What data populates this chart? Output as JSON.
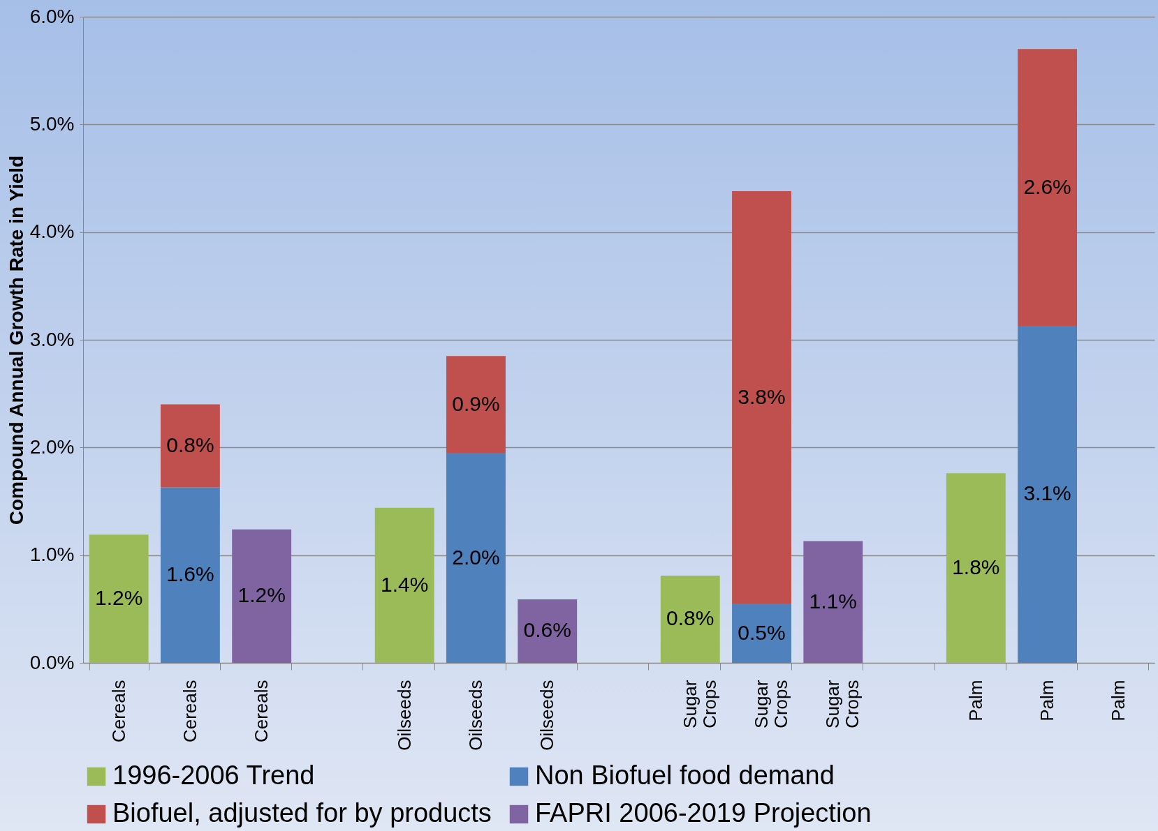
{
  "chart_data": {
    "type": "bar",
    "stacked": true,
    "ylabel": "Compound Annual Growth Rate in Yield",
    "categories": [
      "Cereals",
      "Cereals",
      "Cereals",
      null,
      "Oilseeds",
      "Oilseeds",
      "Oilseeds",
      null,
      "Sugar Crops",
      "Sugar Crops",
      "Sugar Crops",
      null,
      "Palm",
      "Palm",
      "Palm"
    ],
    "series": [
      {
        "name": "1996-2006 Trend",
        "color": "#9bbb59",
        "values": [
          1.19,
          null,
          null,
          null,
          1.44,
          null,
          null,
          null,
          0.81,
          null,
          null,
          null,
          1.76,
          null,
          null
        ],
        "value_labels": [
          "1.2%",
          null,
          null,
          null,
          "1.4%",
          null,
          null,
          null,
          "0.8%",
          null,
          null,
          null,
          "1.8%",
          null,
          null
        ]
      },
      {
        "name": "Non Biofuel food demand",
        "color": "#4f81bd",
        "values": [
          null,
          1.63,
          null,
          null,
          null,
          1.95,
          null,
          null,
          null,
          0.55,
          null,
          null,
          null,
          3.13,
          null
        ],
        "value_labels": [
          null,
          "1.6%",
          null,
          null,
          null,
          "2.0%",
          null,
          null,
          null,
          "0.5%",
          null,
          null,
          null,
          "3.1%",
          null
        ]
      },
      {
        "name": "Biofuel, adjusted for by products",
        "color": "#c0504d",
        "values": [
          null,
          0.77,
          null,
          null,
          null,
          0.9,
          null,
          null,
          null,
          3.83,
          null,
          null,
          null,
          2.57,
          null
        ],
        "value_labels": [
          null,
          "0.8%",
          null,
          null,
          null,
          "0.9%",
          null,
          null,
          null,
          "3.8%",
          null,
          null,
          null,
          "2.6%",
          null
        ]
      },
      {
        "name": "FAPRI 2006-2019 Projection",
        "color": "#8064a2",
        "values": [
          null,
          null,
          1.24,
          null,
          null,
          null,
          0.59,
          null,
          null,
          null,
          1.13,
          null,
          null,
          null,
          null
        ],
        "value_labels": [
          null,
          null,
          "1.2%",
          null,
          null,
          null,
          "0.6%",
          null,
          null,
          null,
          "1.1%",
          null,
          null,
          null,
          null
        ]
      }
    ],
    "ylim": [
      0,
      6
    ],
    "yticks": [
      {
        "value": 0,
        "label": "0.0%"
      },
      {
        "value": 1,
        "label": "1.0%"
      },
      {
        "value": 2,
        "label": "2.0%"
      },
      {
        "value": 3,
        "label": "3.0%"
      },
      {
        "value": 4,
        "label": "4.0%"
      },
      {
        "value": 5,
        "label": "5.0%"
      },
      {
        "value": 6,
        "label": "6.0%"
      }
    ],
    "grid": "y",
    "legend": "bottom"
  }
}
